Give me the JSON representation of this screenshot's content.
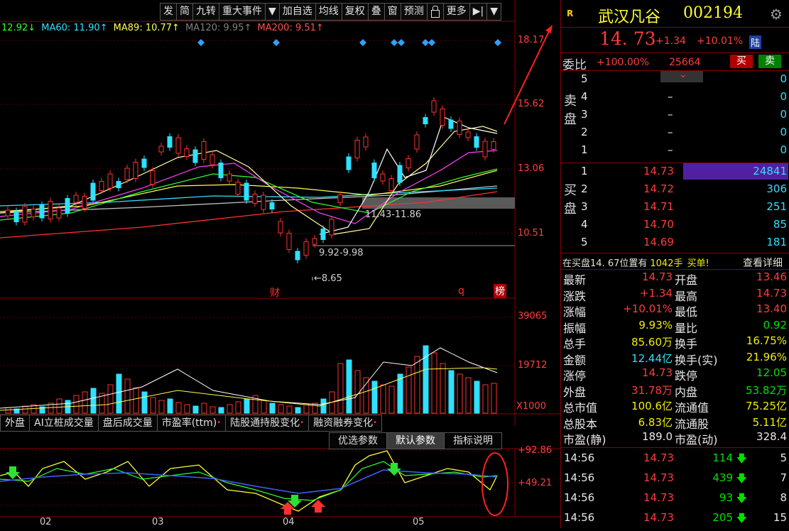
{
  "toolbar": {
    "items": [
      "发",
      "简",
      "九转",
      "重大事件",
      "▼",
      "加自选",
      "均线",
      "复权",
      "叠",
      "窗",
      "预测",
      "",
      "更多",
      "▶|",
      "▼"
    ]
  },
  "ma_legend": [
    {
      "text": "12.92↓",
      "color": "#30ff30"
    },
    {
      "text": "MA60: 11.90↑",
      "color": "#30e0ff"
    },
    {
      "text": "MA89: 10.77↑",
      "color": "#ffff50"
    },
    {
      "text": "MA120: 9.95↑",
      "color": "#808080"
    },
    {
      "text": "MA200: 9.51↑",
      "color": "#ff5050"
    }
  ],
  "price_axis": [
    "18.17",
    "15.62",
    "13.06",
    "10.51"
  ],
  "chart_annotations": {
    "range_high": "11.43-11.86",
    "range_low": "9.92-9.98",
    "low_point": "8.65",
    "event_cai": "财",
    "event_q": "q",
    "event_bang": "榜"
  },
  "volume_axis": [
    "39065",
    "19712",
    "X1000"
  ],
  "indicator_tabs": [
    {
      "label": "外盘",
      "dot": false
    },
    {
      "label": "AI立桩成交量",
      "dot": false
    },
    {
      "label": "盘后成交量",
      "dot": false
    },
    {
      "label": "市盈率(ttm)",
      "dot": true
    },
    {
      "label": "陆股通持股变化",
      "dot": true
    },
    {
      "label": "融资融券变化",
      "dot": true
    }
  ],
  "param_tabs": [
    "优选参数",
    "默认参数",
    "指标说明"
  ],
  "indicator_axis": [
    "92.86",
    "49.21"
  ],
  "dates": [
    "02",
    "03",
    "04",
    "05"
  ],
  "panel": {
    "r_badge": "R",
    "stock_name": "武汉凡谷",
    "stock_code": "002194",
    "price": "14. 73",
    "change": "+1.34",
    "change_pct": "+10.01%",
    "market_badge": "陆",
    "weibi_label": "委比",
    "weibi_value": "+100.00%",
    "weibi_qty": "25664",
    "buy_btn": "买",
    "sell_btn": "卖",
    "sell_label": "卖盘",
    "buy_label": "买盘",
    "sell_levels": [
      {
        "lvl": "5",
        "price": "",
        "qty": "0"
      },
      {
        "lvl": "4",
        "price": "–",
        "qty": "0"
      },
      {
        "lvl": "3",
        "price": "–",
        "qty": "0"
      },
      {
        "lvl": "2",
        "price": "–",
        "qty": "0"
      },
      {
        "lvl": "1",
        "price": "–",
        "qty": "0"
      }
    ],
    "buy_levels": [
      {
        "lvl": "1",
        "price": "14.73",
        "qty": "24841"
      },
      {
        "lvl": "2",
        "price": "14.72",
        "qty": "306"
      },
      {
        "lvl": "3",
        "price": "14.71",
        "qty": "251"
      },
      {
        "lvl": "4",
        "price": "14.70",
        "qty": "85"
      },
      {
        "lvl": "5",
        "price": "14.69",
        "qty": "181"
      }
    ],
    "notice_prefix": "在买盘",
    "notice_price": "14. 67",
    "notice_mid": "位置有",
    "notice_qty": "1042手",
    "notice_suffix": "买单!",
    "notice_link": "查看详细",
    "stats": [
      {
        "l1": "最新",
        "v1": "14.73",
        "c1": "red",
        "l2": "开盘",
        "v2": "13.46",
        "c2": "red"
      },
      {
        "l1": "涨跌",
        "v1": "+1.34",
        "c1": "red",
        "l2": "最高",
        "v2": "14.73",
        "c2": "red"
      },
      {
        "l1": "涨幅",
        "v1": "+10.01%",
        "c1": "red",
        "l2": "最低",
        "v2": "13.40",
        "c2": "red"
      },
      {
        "l1": "振幅",
        "v1": "9.93%",
        "c1": "yellow",
        "l2": "量比",
        "v2": "0.92",
        "c2": "green"
      },
      {
        "l1": "总手",
        "v1": "85.60万",
        "c1": "yellow",
        "l2": "换手",
        "v2": "16.75%",
        "c2": "yellow"
      },
      {
        "l1": "金额",
        "v1": "12.44亿",
        "c1": "cyan",
        "l2": "换手(实)",
        "v2": "21.96%",
        "c2": "yellow"
      },
      {
        "l1": "涨停",
        "v1": "14.73",
        "c1": "red",
        "l2": "跌停",
        "v2": "12.05",
        "c2": "green"
      },
      {
        "l1": "外盘",
        "v1": "31.78万",
        "c1": "red",
        "l2": "内盘",
        "v2": "53.82万",
        "c2": "green"
      },
      {
        "l1": "总市值",
        "v1": "100.6亿",
        "c1": "yellow",
        "l2": "流通值",
        "v2": "75.25亿",
        "c2": "yellow"
      },
      {
        "l1": "总股本",
        "v1": "6.83亿",
        "c1": "yellow",
        "l2": "流通股",
        "v2": "5.11亿",
        "c2": "yellow"
      },
      {
        "l1": "市盈(静)",
        "v1": "189.0",
        "c1": "white",
        "l2": "市盈(动)",
        "v2": "328.4",
        "c2": "white"
      }
    ],
    "trades": [
      {
        "time": "14:56",
        "price": "14.73",
        "qty": "114",
        "n": "5"
      },
      {
        "time": "14:56",
        "price": "14.73",
        "qty": "439",
        "n": "7"
      },
      {
        "time": "14:56",
        "price": "14.73",
        "qty": "93",
        "n": "8"
      },
      {
        "time": "14:56",
        "price": "14.73",
        "qty": "205",
        "n": "15"
      }
    ]
  }
}
